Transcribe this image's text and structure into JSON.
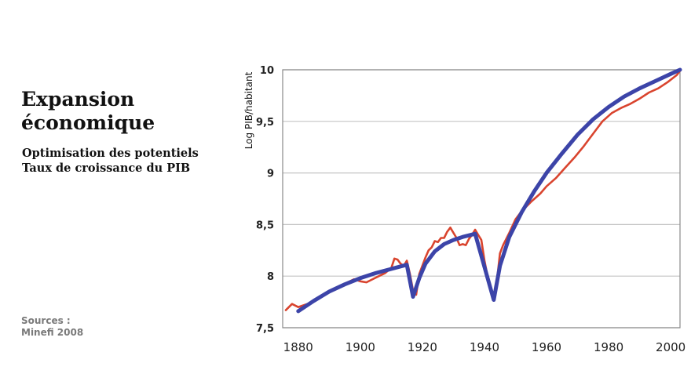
{
  "heading": {
    "title_line1": "Expansion",
    "title_line2": "économique",
    "subtitle_line1": "Optimisation des potentiels",
    "subtitle_line2": "Taux de croissance du PIB"
  },
  "sources": {
    "label": "Sources :",
    "value": "Minefi 2008"
  },
  "chart_data": {
    "type": "line",
    "ylabel": "Log PIB/habitant",
    "xlim": [
      1875,
      2003
    ],
    "ylim": [
      7.5,
      10
    ],
    "x_ticks": [
      1880,
      1900,
      1920,
      1940,
      1960,
      1980,
      2000
    ],
    "y_ticks": [
      7.5,
      8,
      8.5,
      9,
      9.5,
      10
    ],
    "y_tick_labels": [
      "7,5",
      "8",
      "8,5",
      "9",
      "9,5",
      "10"
    ],
    "grid": true,
    "series": [
      {
        "color": "#d9442e",
        "style": "observed",
        "points": [
          [
            1876,
            7.67
          ],
          [
            1878,
            7.73
          ],
          [
            1880,
            7.7
          ],
          [
            1882,
            7.72
          ],
          [
            1884,
            7.74
          ],
          [
            1886,
            7.78
          ],
          [
            1888,
            7.82
          ],
          [
            1890,
            7.85
          ],
          [
            1892,
            7.88
          ],
          [
            1894,
            7.91
          ],
          [
            1896,
            7.94
          ],
          [
            1898,
            7.97
          ],
          [
            1900,
            7.95
          ],
          [
            1902,
            7.94
          ],
          [
            1904,
            7.97
          ],
          [
            1906,
            8.0
          ],
          [
            1908,
            8.03
          ],
          [
            1910,
            8.08
          ],
          [
            1911,
            8.17
          ],
          [
            1912,
            8.16
          ],
          [
            1913,
            8.12
          ],
          [
            1914,
            8.1
          ],
          [
            1915,
            8.15
          ],
          [
            1916,
            8.02
          ],
          [
            1917,
            7.86
          ],
          [
            1918,
            7.82
          ],
          [
            1919,
            8.02
          ],
          [
            1920,
            8.1
          ],
          [
            1921,
            8.18
          ],
          [
            1922,
            8.25
          ],
          [
            1923,
            8.28
          ],
          [
            1924,
            8.34
          ],
          [
            1925,
            8.33
          ],
          [
            1926,
            8.37
          ],
          [
            1927,
            8.37
          ],
          [
            1928,
            8.43
          ],
          [
            1929,
            8.47
          ],
          [
            1930,
            8.42
          ],
          [
            1931,
            8.37
          ],
          [
            1932,
            8.3
          ],
          [
            1933,
            8.31
          ],
          [
            1934,
            8.3
          ],
          [
            1935,
            8.36
          ],
          [
            1936,
            8.4
          ],
          [
            1937,
            8.45
          ],
          [
            1938,
            8.4
          ],
          [
            1939,
            8.35
          ],
          [
            1940,
            8.15
          ],
          [
            1941,
            8.0
          ],
          [
            1942,
            7.87
          ],
          [
            1943,
            7.82
          ],
          [
            1944,
            7.95
          ],
          [
            1945,
            8.22
          ],
          [
            1946,
            8.3
          ],
          [
            1948,
            8.42
          ],
          [
            1950,
            8.55
          ],
          [
            1952,
            8.63
          ],
          [
            1955,
            8.72
          ],
          [
            1958,
            8.8
          ],
          [
            1960,
            8.87
          ],
          [
            1963,
            8.95
          ],
          [
            1966,
            9.05
          ],
          [
            1969,
            9.15
          ],
          [
            1972,
            9.26
          ],
          [
            1975,
            9.38
          ],
          [
            1978,
            9.5
          ],
          [
            1981,
            9.58
          ],
          [
            1984,
            9.63
          ],
          [
            1987,
            9.67
          ],
          [
            1990,
            9.72
          ],
          [
            1993,
            9.78
          ],
          [
            1996,
            9.82
          ],
          [
            1999,
            9.88
          ],
          [
            2002,
            9.95
          ],
          [
            2003,
            9.99
          ]
        ]
      },
      {
        "color": "#3c44a8",
        "style": "trend",
        "points": [
          [
            1880,
            7.66
          ],
          [
            1885,
            7.76
          ],
          [
            1890,
            7.85
          ],
          [
            1895,
            7.92
          ],
          [
            1900,
            7.98
          ],
          [
            1905,
            8.03
          ],
          [
            1910,
            8.07
          ],
          [
            1915,
            8.11
          ],
          [
            1917,
            7.8
          ],
          [
            1919,
            7.98
          ],
          [
            1921,
            8.12
          ],
          [
            1924,
            8.24
          ],
          [
            1927,
            8.31
          ],
          [
            1930,
            8.35
          ],
          [
            1933,
            8.38
          ],
          [
            1937,
            8.41
          ],
          [
            1943,
            7.77
          ],
          [
            1945,
            8.1
          ],
          [
            1948,
            8.38
          ],
          [
            1952,
            8.62
          ],
          [
            1956,
            8.82
          ],
          [
            1960,
            9.0
          ],
          [
            1965,
            9.19
          ],
          [
            1970,
            9.37
          ],
          [
            1975,
            9.52
          ],
          [
            1980,
            9.64
          ],
          [
            1985,
            9.74
          ],
          [
            1990,
            9.82
          ],
          [
            1995,
            9.89
          ],
          [
            2000,
            9.96
          ],
          [
            2003,
            10.0
          ]
        ]
      }
    ]
  }
}
